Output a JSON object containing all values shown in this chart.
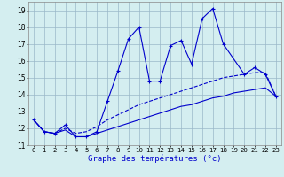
{
  "xlabel": "Graphe des températures (°c)",
  "bg_color": "#d4eef0",
  "grid_color": "#9ab8c8",
  "line_color": "#0000cc",
  "xlim": [
    -0.5,
    23.5
  ],
  "ylim": [
    11,
    19.5
  ],
  "yticks": [
    11,
    12,
    13,
    14,
    15,
    16,
    17,
    18,
    19
  ],
  "xticks": [
    0,
    1,
    2,
    3,
    4,
    5,
    6,
    7,
    8,
    9,
    10,
    11,
    12,
    13,
    14,
    15,
    16,
    17,
    18,
    19,
    20,
    21,
    22,
    23
  ],
  "series": [
    {
      "x": [
        0,
        1,
        2,
        3,
        4,
        5,
        6,
        7,
        8,
        9,
        10,
        11,
        12,
        13,
        14,
        15,
        16,
        17,
        18,
        20,
        21,
        22,
        23
      ],
      "y": [
        12.5,
        11.8,
        11.7,
        12.2,
        11.5,
        11.5,
        11.8,
        13.6,
        15.4,
        17.3,
        18.0,
        14.8,
        14.8,
        16.9,
        17.2,
        15.8,
        18.5,
        19.1,
        17.0,
        15.2,
        15.6,
        15.2,
        13.9
      ],
      "linestyle": "-",
      "marker": "+"
    },
    {
      "x": [
        0,
        1,
        2,
        3,
        4,
        5,
        6,
        7,
        8,
        9,
        10,
        11,
        12,
        13,
        14,
        15,
        16,
        17,
        18,
        19,
        20,
        21,
        22,
        23
      ],
      "y": [
        12.5,
        11.8,
        11.7,
        12.0,
        11.7,
        11.8,
        12.1,
        12.5,
        12.8,
        13.1,
        13.4,
        13.6,
        13.8,
        14.0,
        14.2,
        14.4,
        14.6,
        14.8,
        15.0,
        15.1,
        15.2,
        15.3,
        15.3,
        13.9
      ],
      "linestyle": "--",
      "marker": null
    },
    {
      "x": [
        0,
        1,
        2,
        3,
        4,
        5,
        6,
        7,
        8,
        9,
        10,
        11,
        12,
        13,
        14,
        15,
        16,
        17,
        18,
        19,
        20,
        21,
        22,
        23
      ],
      "y": [
        12.5,
        11.8,
        11.7,
        11.9,
        11.5,
        11.5,
        11.7,
        11.9,
        12.1,
        12.3,
        12.5,
        12.7,
        12.9,
        13.1,
        13.3,
        13.4,
        13.6,
        13.8,
        13.9,
        14.1,
        14.2,
        14.3,
        14.4,
        13.9
      ],
      "linestyle": "-",
      "marker": null
    }
  ]
}
